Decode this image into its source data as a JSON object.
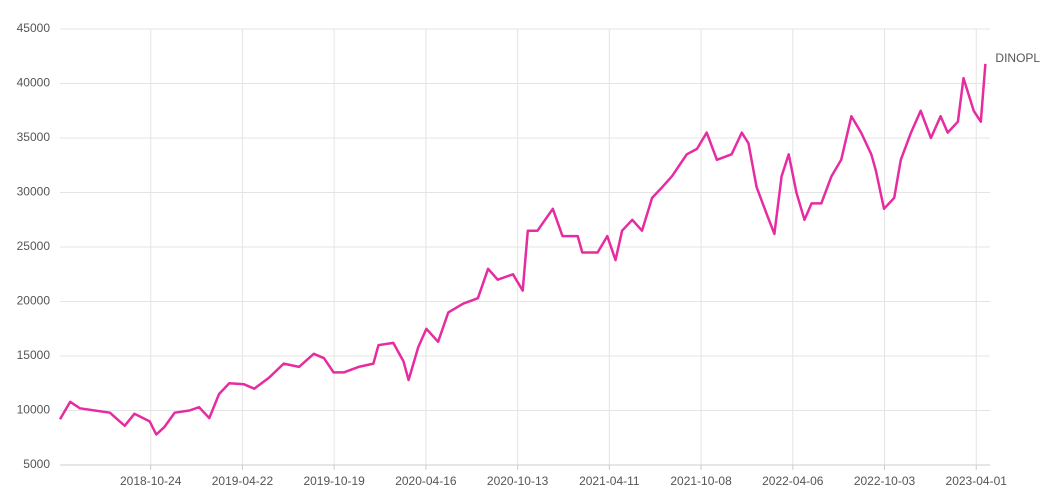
{
  "chart_data": {
    "type": "line",
    "x": [
      "2018-04-29",
      "2018-05-19",
      "2018-06-07",
      "2018-07-06",
      "2018-08-05",
      "2018-09-03",
      "2018-09-22",
      "2018-10-22",
      "2018-11-04",
      "2018-11-20",
      "2018-12-10",
      "2019-01-08",
      "2019-01-27",
      "2019-02-16",
      "2019-03-07",
      "2019-03-27",
      "2019-04-25",
      "2019-05-15",
      "2019-06-13",
      "2019-07-12",
      "2019-08-11",
      "2019-09-09",
      "2019-09-29",
      "2019-10-18",
      "2019-11-07",
      "2019-12-06",
      "2020-01-04",
      "2020-01-14",
      "2020-02-12",
      "2020-03-03",
      "2020-03-13",
      "2020-04-01",
      "2020-04-17",
      "2020-05-10",
      "2020-05-30",
      "2020-06-28",
      "2020-07-27",
      "2020-08-16",
      "2020-09-04",
      "2020-10-04",
      "2020-10-23",
      "2020-11-02",
      "2020-11-21",
      "2020-12-21",
      "2021-01-09",
      "2021-02-08",
      "2021-02-17",
      "2021-03-19",
      "2021-04-07",
      "2021-04-23",
      "2021-05-06",
      "2021-05-26",
      "2021-06-14",
      "2021-07-04",
      "2021-07-24",
      "2021-08-12",
      "2021-09-10",
      "2021-09-30",
      "2021-10-19",
      "2021-11-08",
      "2021-12-07",
      "2021-12-27",
      "2022-01-09",
      "2022-01-25",
      "2022-02-14",
      "2022-03-01",
      "2022-03-15",
      "2022-03-29",
      "2022-04-13",
      "2022-04-29",
      "2022-05-13",
      "2022-06-01",
      "2022-06-21",
      "2022-07-10",
      "2022-07-30",
      "2022-08-18",
      "2022-09-07",
      "2022-09-16",
      "2022-10-02",
      "2022-10-22",
      "2022-11-04",
      "2022-11-24",
      "2022-12-13",
      "2023-01-02",
      "2023-01-21",
      "2023-02-04",
      "2023-02-24",
      "2023-03-07",
      "2023-03-27",
      "2023-04-10",
      "2023-04-19"
    ],
    "series": [
      {
        "name": "DINOPL",
        "color": "#e62ca0",
        "values": [
          9200,
          10800,
          10200,
          10000,
          9800,
          8600,
          9700,
          9000,
          7800,
          8500,
          9800,
          10000,
          10300,
          9300,
          11500,
          12500,
          12400,
          12000,
          13000,
          14300,
          14000,
          15200,
          14800,
          13500,
          13500,
          14000,
          14300,
          16000,
          16200,
          14500,
          12800,
          15800,
          17500,
          16300,
          19000,
          19800,
          20300,
          23000,
          22000,
          22500,
          21000,
          26500,
          26500,
          28500,
          26000,
          26000,
          24500,
          24500,
          26000,
          23800,
          26500,
          27500,
          26500,
          29500,
          30500,
          31500,
          33500,
          34000,
          35500,
          33000,
          33500,
          35500,
          34500,
          30500,
          28000,
          26200,
          31500,
          33500,
          30000,
          27500,
          29000,
          29000,
          31500,
          33000,
          37000,
          35500,
          33500,
          32000,
          28500,
          29500,
          33000,
          35500,
          37500,
          35000,
          37000,
          35500,
          36500,
          40500,
          37500,
          36500,
          41800
        ]
      }
    ],
    "xlim": [
      "2018-04-29",
      "2023-04-28"
    ],
    "xticks": [
      "2018-10-24",
      "2019-04-22",
      "2019-10-19",
      "2020-04-16",
      "2020-10-13",
      "2021-04-11",
      "2021-10-08",
      "2022-04-06",
      "2022-10-03",
      "2023-04-01"
    ],
    "ylim": [
      5000,
      45000
    ],
    "yticks": [
      5000,
      10000,
      15000,
      20000,
      25000,
      30000,
      35000,
      40000,
      45000
    ],
    "grid": true
  }
}
